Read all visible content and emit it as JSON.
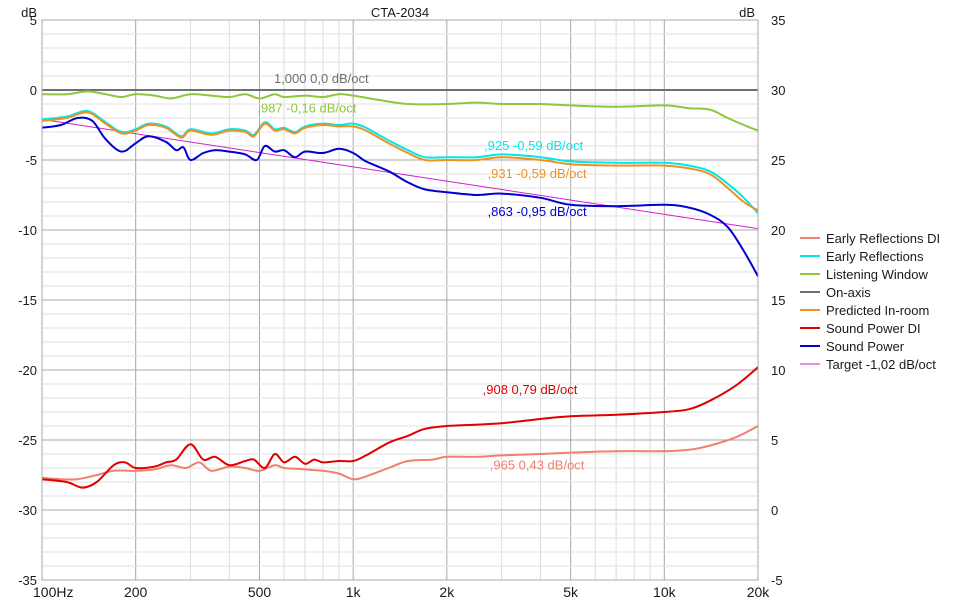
{
  "chart_data": {
    "type": "line",
    "title": "CTA-2034",
    "left_axis": {
      "unit": "dB",
      "ylim": [
        -35,
        5
      ],
      "ticks": [
        "5",
        "0",
        "-5",
        "-10",
        "-15",
        "-20",
        "-25",
        "-30",
        "-35"
      ]
    },
    "right_axis": {
      "unit": "dB",
      "ylim": [
        -5,
        35
      ],
      "ticks": [
        "35",
        "30",
        "25",
        "20",
        "15",
        "10",
        "5",
        "0",
        "-5"
      ]
    },
    "x_axis": {
      "scale": "log",
      "xlim": [
        100,
        20000
      ],
      "ticks": [
        {
          "value": 100,
          "label": "100Hz"
        },
        {
          "value": 200,
          "label": "200"
        },
        {
          "value": 500,
          "label": "500"
        },
        {
          "value": 1000,
          "label": "1k"
        },
        {
          "value": 2000,
          "label": "2k"
        },
        {
          "value": 5000,
          "label": "5k"
        },
        {
          "value": 10000,
          "label": "10k"
        },
        {
          "value": 20000,
          "label": "20k"
        }
      ]
    },
    "grid": true,
    "legend": {
      "placement": "right"
    },
    "series": [
      {
        "name": "Early Reflections DI",
        "color": "#f08070",
        "axis": "right",
        "annotation": {
          "text": ",965  0,43 dB/oct",
          "x": 3900,
          "y": 2.9
        },
        "points": [
          [
            100,
            2.3
          ],
          [
            115,
            2.2
          ],
          [
            130,
            2.2
          ],
          [
            150,
            2.5
          ],
          [
            170,
            2.8
          ],
          [
            200,
            2.8
          ],
          [
            230,
            2.9
          ],
          [
            260,
            3.2
          ],
          [
            290,
            3.0
          ],
          [
            320,
            3.4
          ],
          [
            350,
            2.8
          ],
          [
            400,
            3.1
          ],
          [
            450,
            3.0
          ],
          [
            500,
            2.8
          ],
          [
            560,
            3.2
          ],
          [
            600,
            3.0
          ],
          [
            700,
            2.9
          ],
          [
            800,
            2.8
          ],
          [
            900,
            2.6
          ],
          [
            1000,
            2.2
          ],
          [
            1100,
            2.4
          ],
          [
            1300,
            3.0
          ],
          [
            1500,
            3.5
          ],
          [
            1800,
            3.6
          ],
          [
            2000,
            3.8
          ],
          [
            2500,
            3.8
          ],
          [
            3000,
            3.9
          ],
          [
            4000,
            4.0
          ],
          [
            5000,
            4.1
          ],
          [
            7000,
            4.2
          ],
          [
            10000,
            4.2
          ],
          [
            12000,
            4.3
          ],
          [
            14000,
            4.6
          ],
          [
            17000,
            5.2
          ],
          [
            20000,
            6.0
          ]
        ]
      },
      {
        "name": "Early Reflections",
        "color": "#00e8e8",
        "axis": "left",
        "annotation": {
          "text": ",925  -0,59 dB/oct",
          "x": 3800,
          "y": -4.3
        },
        "points": [
          [
            100,
            -2.1
          ],
          [
            120,
            -1.9
          ],
          [
            140,
            -1.5
          ],
          [
            160,
            -2.3
          ],
          [
            180,
            -3.0
          ],
          [
            200,
            -2.8
          ],
          [
            220,
            -2.4
          ],
          [
            250,
            -2.6
          ],
          [
            280,
            -3.3
          ],
          [
            300,
            -2.8
          ],
          [
            350,
            -3.1
          ],
          [
            400,
            -2.8
          ],
          [
            450,
            -2.9
          ],
          [
            480,
            -3.2
          ],
          [
            520,
            -2.3
          ],
          [
            560,
            -2.8
          ],
          [
            600,
            -2.7
          ],
          [
            650,
            -3.0
          ],
          [
            700,
            -2.6
          ],
          [
            800,
            -2.4
          ],
          [
            900,
            -2.5
          ],
          [
            1000,
            -2.4
          ],
          [
            1100,
            -2.7
          ],
          [
            1300,
            -3.6
          ],
          [
            1500,
            -4.3
          ],
          [
            1700,
            -4.8
          ],
          [
            2000,
            -4.8
          ],
          [
            2500,
            -4.8
          ],
          [
            3000,
            -4.6
          ],
          [
            4000,
            -4.8
          ],
          [
            5000,
            -5.1
          ],
          [
            7000,
            -5.2
          ],
          [
            10000,
            -5.2
          ],
          [
            12000,
            -5.4
          ],
          [
            14000,
            -5.8
          ],
          [
            16000,
            -6.7
          ],
          [
            18000,
            -7.7
          ],
          [
            20000,
            -8.8
          ]
        ]
      },
      {
        "name": "Listening Window",
        "color": "#8cc83c",
        "axis": "left",
        "annotation": {
          "text": ",987  -0,16 dB/oct",
          "x": 710,
          "y": -1.6
        },
        "points": [
          [
            100,
            -0.3
          ],
          [
            120,
            -0.3
          ],
          [
            140,
            -0.1
          ],
          [
            160,
            -0.3
          ],
          [
            180,
            -0.5
          ],
          [
            200,
            -0.3
          ],
          [
            230,
            -0.4
          ],
          [
            260,
            -0.6
          ],
          [
            300,
            -0.3
          ],
          [
            350,
            -0.4
          ],
          [
            400,
            -0.5
          ],
          [
            450,
            -0.3
          ],
          [
            500,
            -0.6
          ],
          [
            560,
            -0.3
          ],
          [
            600,
            -0.5
          ],
          [
            700,
            -0.4
          ],
          [
            800,
            -0.5
          ],
          [
            900,
            -0.3
          ],
          [
            1000,
            -0.4
          ],
          [
            1200,
            -0.7
          ],
          [
            1500,
            -1.0
          ],
          [
            2000,
            -1.0
          ],
          [
            2500,
            -0.9
          ],
          [
            3000,
            -1.0
          ],
          [
            4000,
            -1.0
          ],
          [
            5000,
            -1.1
          ],
          [
            7000,
            -1.2
          ],
          [
            10000,
            -1.1
          ],
          [
            12000,
            -1.3
          ],
          [
            14000,
            -1.4
          ],
          [
            16000,
            -2.0
          ],
          [
            18000,
            -2.5
          ],
          [
            20000,
            -2.9
          ]
        ]
      },
      {
        "name": "On-axis",
        "color": "#707070",
        "axis": "left",
        "annotation": {
          "text": "1,000  0,0 dB/oct",
          "x": 790,
          "y": 0.5
        },
        "points": [
          [
            100,
            0.0
          ],
          [
            20000,
            0.0
          ]
        ]
      },
      {
        "name": "Predicted In-room",
        "color": "#f09020",
        "axis": "left",
        "annotation": {
          "text": ",931  -0,59 dB/oct",
          "x": 3900,
          "y": -6.3
        },
        "points": [
          [
            100,
            -2.2
          ],
          [
            120,
            -2.0
          ],
          [
            140,
            -1.6
          ],
          [
            160,
            -2.4
          ],
          [
            180,
            -3.1
          ],
          [
            200,
            -2.9
          ],
          [
            220,
            -2.5
          ],
          [
            250,
            -2.7
          ],
          [
            280,
            -3.4
          ],
          [
            300,
            -2.9
          ],
          [
            350,
            -3.2
          ],
          [
            400,
            -2.9
          ],
          [
            450,
            -3.0
          ],
          [
            480,
            -3.3
          ],
          [
            520,
            -2.4
          ],
          [
            560,
            -2.9
          ],
          [
            600,
            -2.8
          ],
          [
            650,
            -3.1
          ],
          [
            700,
            -2.7
          ],
          [
            800,
            -2.5
          ],
          [
            900,
            -2.6
          ],
          [
            1000,
            -2.6
          ],
          [
            1100,
            -2.9
          ],
          [
            1300,
            -3.8
          ],
          [
            1500,
            -4.5
          ],
          [
            1700,
            -5.0
          ],
          [
            2000,
            -5.0
          ],
          [
            2500,
            -5.0
          ],
          [
            3000,
            -4.8
          ],
          [
            4000,
            -5.0
          ],
          [
            5000,
            -5.3
          ],
          [
            7000,
            -5.4
          ],
          [
            10000,
            -5.4
          ],
          [
            12000,
            -5.6
          ],
          [
            14000,
            -6.0
          ],
          [
            16000,
            -7.0
          ],
          [
            18000,
            -8.0
          ],
          [
            20000,
            -8.6
          ]
        ]
      },
      {
        "name": "Sound Power DI",
        "color": "#e00000",
        "axis": "right",
        "annotation": {
          "text": ",908  0,79 dB/oct",
          "x": 3700,
          "y": 8.3
        },
        "points": [
          [
            100,
            2.2
          ],
          [
            120,
            2.0
          ],
          [
            135,
            1.6
          ],
          [
            150,
            2.0
          ],
          [
            170,
            3.2
          ],
          [
            185,
            3.4
          ],
          [
            200,
            3.0
          ],
          [
            230,
            3.1
          ],
          [
            250,
            3.4
          ],
          [
            270,
            3.6
          ],
          [
            300,
            4.7
          ],
          [
            330,
            3.6
          ],
          [
            360,
            3.8
          ],
          [
            400,
            3.2
          ],
          [
            450,
            3.5
          ],
          [
            480,
            3.6
          ],
          [
            520,
            3.0
          ],
          [
            560,
            4.0
          ],
          [
            600,
            3.4
          ],
          [
            650,
            3.8
          ],
          [
            700,
            3.3
          ],
          [
            750,
            3.6
          ],
          [
            800,
            3.4
          ],
          [
            900,
            3.5
          ],
          [
            1000,
            3.5
          ],
          [
            1100,
            3.9
          ],
          [
            1300,
            4.8
          ],
          [
            1500,
            5.3
          ],
          [
            1700,
            5.8
          ],
          [
            2000,
            6.0
          ],
          [
            2500,
            6.1
          ],
          [
            3000,
            6.2
          ],
          [
            4000,
            6.5
          ],
          [
            5000,
            6.7
          ],
          [
            7000,
            6.8
          ],
          [
            10000,
            7.0
          ],
          [
            12000,
            7.2
          ],
          [
            14000,
            7.8
          ],
          [
            17000,
            8.9
          ],
          [
            20000,
            10.2
          ]
        ]
      },
      {
        "name": "Sound Power",
        "color": "#0000d0",
        "axis": "left",
        "annotation": {
          "text": ",863  -0,95 dB/oct",
          "x": 3900,
          "y": -9.0
        },
        "points": [
          [
            100,
            -2.7
          ],
          [
            115,
            -2.5
          ],
          [
            130,
            -2.0
          ],
          [
            145,
            -2.2
          ],
          [
            160,
            -3.5
          ],
          [
            180,
            -4.4
          ],
          [
            200,
            -3.8
          ],
          [
            220,
            -3.3
          ],
          [
            250,
            -3.7
          ],
          [
            270,
            -4.3
          ],
          [
            285,
            -4.1
          ],
          [
            300,
            -5.0
          ],
          [
            330,
            -4.5
          ],
          [
            360,
            -4.3
          ],
          [
            400,
            -4.4
          ],
          [
            450,
            -4.6
          ],
          [
            490,
            -5.0
          ],
          [
            520,
            -4.0
          ],
          [
            560,
            -4.4
          ],
          [
            600,
            -4.3
          ],
          [
            650,
            -4.8
          ],
          [
            700,
            -4.4
          ],
          [
            800,
            -4.5
          ],
          [
            900,
            -4.2
          ],
          [
            1000,
            -4.5
          ],
          [
            1100,
            -5.1
          ],
          [
            1300,
            -5.8
          ],
          [
            1500,
            -6.6
          ],
          [
            1700,
            -7.1
          ],
          [
            2000,
            -7.3
          ],
          [
            2500,
            -7.5
          ],
          [
            3000,
            -7.4
          ],
          [
            4000,
            -7.7
          ],
          [
            5000,
            -8.2
          ],
          [
            7000,
            -8.3
          ],
          [
            10000,
            -8.2
          ],
          [
            12000,
            -8.4
          ],
          [
            14000,
            -8.9
          ],
          [
            16000,
            -9.8
          ],
          [
            18000,
            -11.5
          ],
          [
            20000,
            -13.3
          ]
        ]
      },
      {
        "name": "Target -1,02 dB/oct",
        "color": "#d020d0",
        "axis": "left",
        "points": [
          [
            100,
            -2.1
          ],
          [
            20000,
            -9.9
          ]
        ]
      }
    ]
  }
}
